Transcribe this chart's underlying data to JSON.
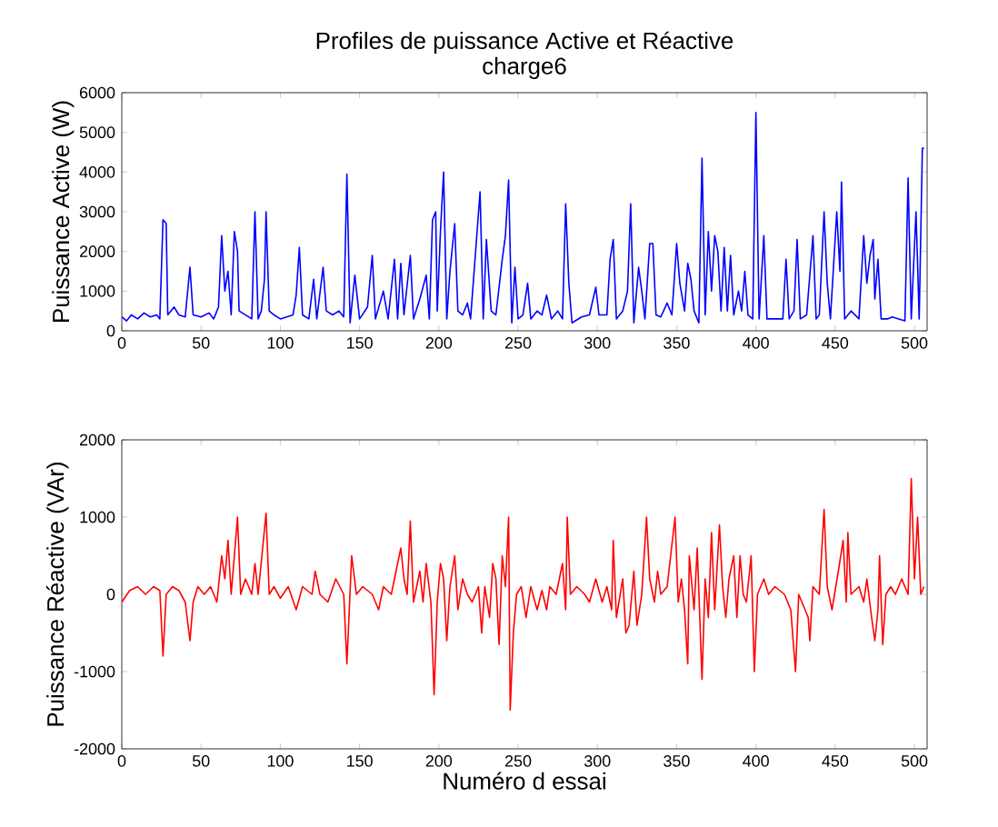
{
  "chart_data": [
    {
      "type": "line",
      "title": "Profiles de puissance Active et Réactive",
      "subtitle": "charge6",
      "ylabel": "Puissance Active (W)",
      "xlim": [
        0,
        508
      ],
      "xticks": [
        0,
        50,
        100,
        150,
        200,
        250,
        300,
        350,
        400,
        450,
        500
      ],
      "ylim": [
        0,
        6000
      ],
      "yticks": [
        0,
        1000,
        2000,
        3000,
        4000,
        5000,
        6000
      ],
      "grid": false,
      "series": [
        {
          "color": "#0000ff",
          "x": [
            0,
            3,
            6,
            10,
            14,
            18,
            22,
            24,
            26,
            28,
            29,
            33,
            36,
            40,
            43,
            45,
            50,
            55,
            58,
            61,
            63,
            65,
            67,
            69,
            71,
            73,
            74,
            78,
            82,
            84,
            86,
            88,
            90,
            91,
            93,
            96,
            100,
            104,
            108,
            110,
            112,
            114,
            118,
            121,
            123,
            127,
            129,
            133,
            137,
            140,
            142,
            144,
            147,
            150,
            155,
            158,
            160,
            165,
            168,
            172,
            174,
            176,
            178,
            182,
            184,
            188,
            192,
            194,
            196,
            198,
            199,
            201,
            203,
            205,
            207,
            210,
            212,
            215,
            218,
            220,
            226,
            228,
            230,
            233,
            236,
            240,
            242,
            244,
            246,
            248,
            250,
            253,
            256,
            258,
            262,
            265,
            268,
            271,
            275,
            278,
            280,
            282,
            284,
            290,
            295,
            299,
            301,
            306,
            308,
            310,
            312,
            316,
            319,
            321,
            323,
            326,
            328,
            330,
            333,
            335,
            337,
            340,
            344,
            347,
            350,
            352,
            355,
            357,
            359,
            361,
            364,
            366,
            368,
            370,
            372,
            374,
            376,
            378,
            380,
            382,
            384,
            386,
            389,
            391,
            393,
            395,
            398,
            400,
            402,
            405,
            407,
            412,
            417,
            419,
            421,
            424,
            426,
            428,
            432,
            436,
            438,
            440,
            443,
            445,
            447,
            451,
            453,
            454,
            456,
            460,
            465,
            468,
            470,
            472,
            474,
            475,
            477,
            479,
            483,
            486,
            490,
            494,
            496,
            498,
            501,
            503,
            505,
            506
          ],
          "values": [
            350,
            250,
            400,
            300,
            450,
            350,
            400,
            300,
            2800,
            2700,
            400,
            600,
            400,
            350,
            1600,
            400,
            350,
            450,
            300,
            600,
            2400,
            1000,
            1500,
            400,
            2500,
            2000,
            500,
            400,
            300,
            3000,
            300,
            500,
            1300,
            3000,
            500,
            400,
            300,
            350,
            400,
            900,
            2100,
            400,
            300,
            1300,
            300,
            1600,
            500,
            400,
            500,
            350,
            3950,
            200,
            1400,
            300,
            600,
            1900,
            300,
            1000,
            300,
            1800,
            300,
            1700,
            400,
            1900,
            300,
            800,
            1400,
            300,
            2800,
            3000,
            500,
            2500,
            4000,
            300,
            1500,
            2700,
            500,
            400,
            700,
            300,
            3500,
            300,
            2300,
            500,
            400,
            1800,
            2400,
            3800,
            200,
            1600,
            300,
            400,
            1200,
            300,
            500,
            400,
            900,
            300,
            500,
            300,
            3200,
            1200,
            200,
            350,
            400,
            1100,
            400,
            400,
            1800,
            2300,
            300,
            500,
            1000,
            3200,
            200,
            1600,
            1000,
            300,
            2200,
            2200,
            400,
            350,
            700,
            400,
            2200,
            1200,
            500,
            1700,
            1300,
            500,
            200,
            4350,
            400,
            2500,
            1000,
            2400,
            2000,
            500,
            2100,
            500,
            1900,
            400,
            1000,
            500,
            1500,
            400,
            300,
            5500,
            300,
            2400,
            300,
            300,
            300,
            1800,
            300,
            500,
            2300,
            300,
            400,
            2400,
            300,
            400,
            3000,
            1200,
            300,
            3000,
            1500,
            3750,
            300,
            500,
            300,
            2400,
            1200,
            1900,
            2300,
            800,
            1800,
            300,
            300,
            350,
            300,
            250,
            3850,
            300,
            3000,
            300,
            4600,
            4600
          ]
        }
      ]
    },
    {
      "type": "line",
      "xlabel": "Numéro d essai",
      "ylabel": "Puissance Réactive (VAr)",
      "xlim": [
        0,
        508
      ],
      "xticks": [
        0,
        50,
        100,
        150,
        200,
        250,
        300,
        350,
        400,
        450,
        500
      ],
      "ylim": [
        -2000,
        2000
      ],
      "yticks": [
        -2000,
        -1000,
        0,
        1000,
        2000
      ],
      "grid": false,
      "series": [
        {
          "color": "#ff0000",
          "x": [
            0,
            5,
            10,
            15,
            20,
            24,
            26,
            28,
            32,
            36,
            40,
            43,
            45,
            48,
            52,
            56,
            60,
            63,
            65,
            67,
            69,
            73,
            75,
            78,
            82,
            84,
            86,
            91,
            93,
            96,
            100,
            105,
            110,
            114,
            120,
            122,
            125,
            130,
            135,
            140,
            142,
            145,
            148,
            152,
            158,
            162,
            165,
            170,
            176,
            178,
            180,
            182,
            184,
            188,
            190,
            192,
            195,
            197,
            199,
            201,
            203,
            205,
            207,
            210,
            212,
            215,
            218,
            221,
            225,
            227,
            229,
            232,
            234,
            236,
            238,
            240,
            242,
            244,
            245,
            247,
            249,
            252,
            255,
            258,
            262,
            265,
            268,
            270,
            274,
            278,
            280,
            281,
            283,
            287,
            292,
            295,
            299,
            303,
            306,
            309,
            310,
            312,
            316,
            318,
            320,
            323,
            325,
            328,
            331,
            333,
            336,
            338,
            340,
            344,
            349,
            351,
            353,
            355,
            357,
            358,
            361,
            363,
            366,
            368,
            370,
            372,
            374,
            377,
            379,
            381,
            383,
            386,
            388,
            390,
            392,
            394,
            397,
            399,
            401,
            405,
            408,
            412,
            418,
            422,
            425,
            427,
            433,
            434,
            436,
            440,
            443,
            445,
            448,
            452,
            455,
            457,
            458,
            460,
            465,
            468,
            470,
            473,
            475,
            477,
            478,
            480,
            482,
            485,
            488,
            492,
            496,
            498,
            500,
            502,
            504,
            506
          ],
          "values": [
            -100,
            50,
            100,
            0,
            100,
            50,
            -800,
            0,
            100,
            50,
            -100,
            -600,
            -100,
            100,
            0,
            100,
            -100,
            500,
            200,
            700,
            0,
            1000,
            0,
            200,
            0,
            400,
            0,
            1050,
            0,
            100,
            -50,
            100,
            -200,
            100,
            0,
            300,
            0,
            -100,
            200,
            0,
            -900,
            500,
            0,
            100,
            0,
            -200,
            100,
            0,
            600,
            200,
            0,
            950,
            -100,
            300,
            -100,
            400,
            -100,
            -1300,
            -100,
            400,
            200,
            -600,
            100,
            500,
            -200,
            200,
            0,
            -100,
            100,
            -500,
            100,
            -300,
            400,
            200,
            -650,
            500,
            100,
            1000,
            -1500,
            -500,
            0,
            100,
            -300,
            100,
            -200,
            50,
            -200,
            100,
            0,
            400,
            -200,
            1000,
            0,
            100,
            0,
            -100,
            200,
            -100,
            100,
            -200,
            700,
            -300,
            200,
            -500,
            -400,
            300,
            -400,
            0,
            1000,
            200,
            -100,
            300,
            0,
            100,
            1000,
            -100,
            200,
            -200,
            -900,
            500,
            -200,
            600,
            -1100,
            200,
            -300,
            800,
            -200,
            900,
            100,
            -300,
            200,
            500,
            -300,
            500,
            0,
            -100,
            500,
            -1000,
            0,
            200,
            0,
            100,
            0,
            -200,
            -1000,
            0,
            -300,
            -600,
            100,
            0,
            1100,
            100,
            -200,
            300,
            700,
            -100,
            800,
            0,
            100,
            -100,
            200,
            -300,
            -600,
            -200,
            500,
            -650,
            0,
            100,
            0,
            200,
            0,
            1500,
            200,
            1000,
            0,
            100
          ]
        }
      ]
    }
  ]
}
